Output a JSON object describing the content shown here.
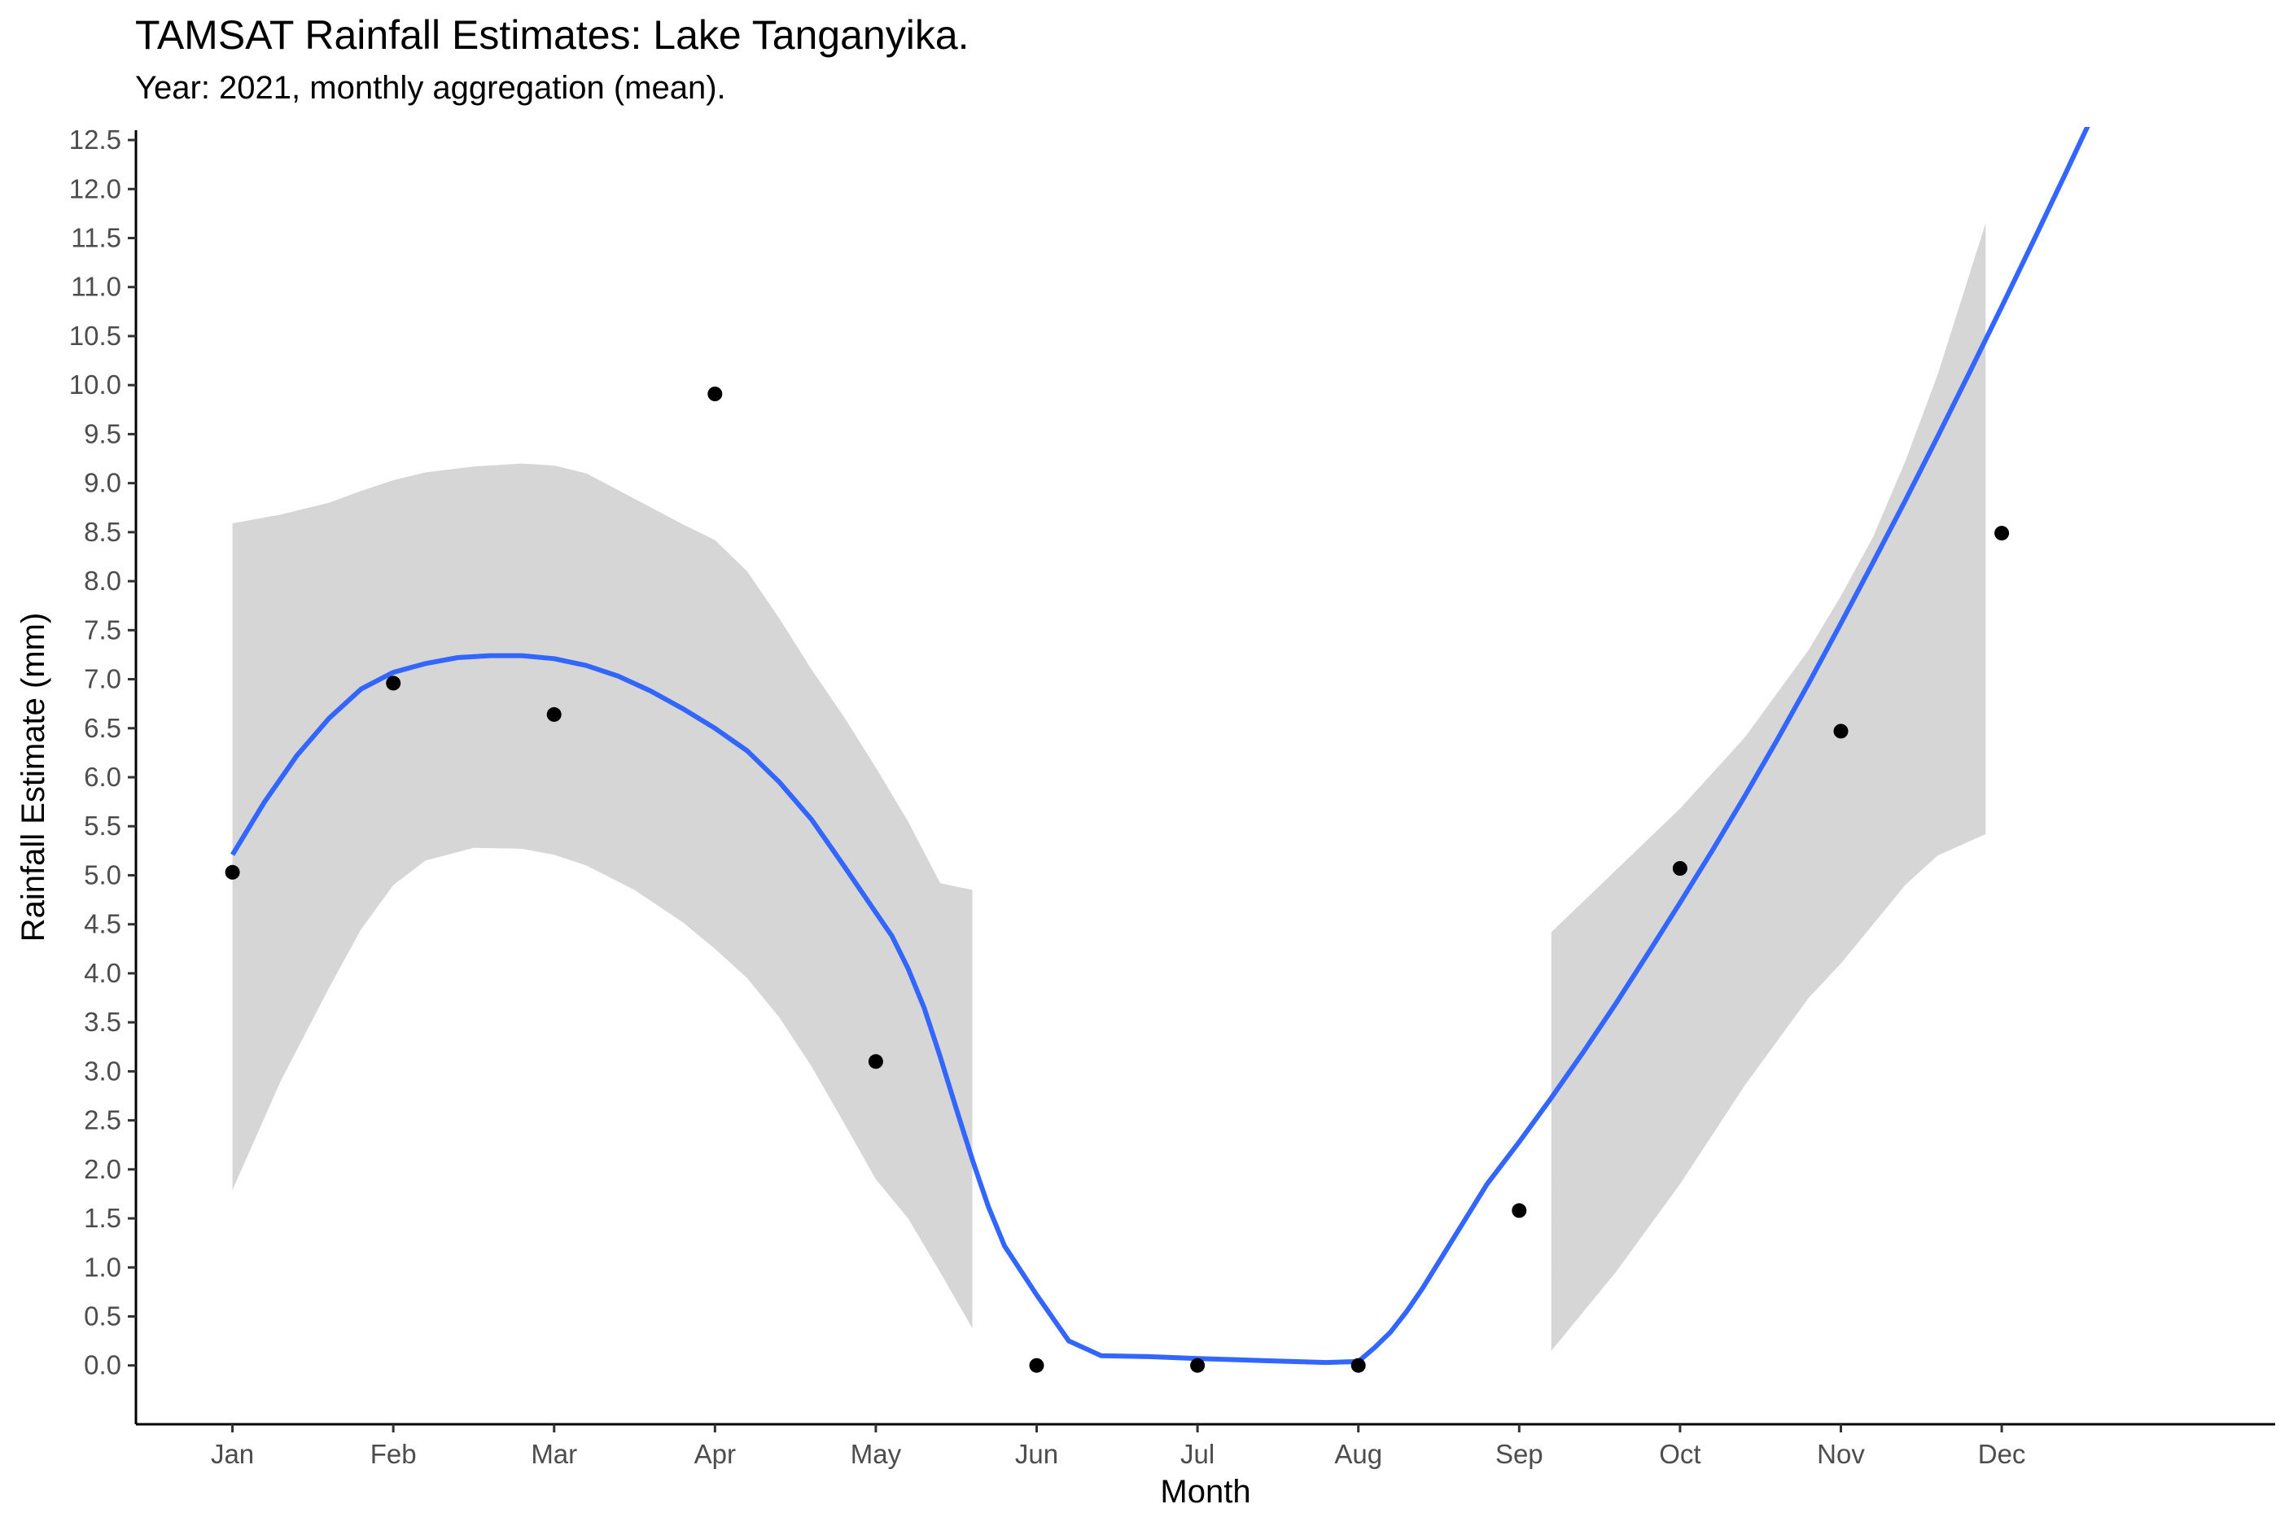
{
  "chart_data": {
    "type": "scatter",
    "title": "TAMSAT Rainfall Estimates: Lake Tanganyika.",
    "subtitle": "Year: 2021, monthly aggregation (mean).",
    "xlabel": "Month",
    "ylabel": "Rainfall Estimate (mm)",
    "categories": [
      "Jan",
      "Feb",
      "Mar",
      "Apr",
      "May",
      "Jun",
      "Jul",
      "Aug",
      "Sep",
      "Oct",
      "Nov",
      "Dec"
    ],
    "yticks": [
      "0.0",
      "0.5",
      "1.0",
      "1.5",
      "2.0",
      "2.5",
      "3.0",
      "3.5",
      "4.0",
      "4.5",
      "5.0",
      "5.5",
      "6.0",
      "6.5",
      "7.0",
      "7.5",
      "8.0",
      "8.5",
      "9.0",
      "9.5",
      "10.0",
      "10.5",
      "11.0",
      "11.5",
      "12.0",
      "12.5"
    ],
    "ylim": [
      -0.6,
      12.6
    ],
    "xlim": [
      0.4,
      13.7
    ],
    "grid": false,
    "colors": {
      "points": "#000000",
      "smooth_line": "#3366ff",
      "ci_band": "#d6d6d6",
      "axis": "#000000",
      "tick_text": "#4d4d4d"
    },
    "points": [
      {
        "x": 1,
        "y": 5.03
      },
      {
        "x": 2,
        "y": 6.96
      },
      {
        "x": 3,
        "y": 6.64
      },
      {
        "x": 4,
        "y": 9.91
      },
      {
        "x": 5,
        "y": 3.1
      },
      {
        "x": 6,
        "y": 0.0
      },
      {
        "x": 7,
        "y": 0.0
      },
      {
        "x": 8,
        "y": 0.0
      },
      {
        "x": 9,
        "y": 1.58
      },
      {
        "x": 10,
        "y": 5.07
      },
      {
        "x": 11,
        "y": 6.47
      },
      {
        "x": 12,
        "y": 8.49
      }
    ],
    "smooth_line": [
      {
        "x": 1.0,
        "y": 5.21
      },
      {
        "x": 1.2,
        "y": 5.75
      },
      {
        "x": 1.4,
        "y": 6.22
      },
      {
        "x": 1.6,
        "y": 6.6
      },
      {
        "x": 1.8,
        "y": 6.9
      },
      {
        "x": 2.0,
        "y": 7.07
      },
      {
        "x": 2.2,
        "y": 7.16
      },
      {
        "x": 2.4,
        "y": 7.22
      },
      {
        "x": 2.6,
        "y": 7.24
      },
      {
        "x": 2.8,
        "y": 7.24
      },
      {
        "x": 3.0,
        "y": 7.21
      },
      {
        "x": 3.2,
        "y": 7.14
      },
      {
        "x": 3.4,
        "y": 7.03
      },
      {
        "x": 3.6,
        "y": 6.88
      },
      {
        "x": 3.8,
        "y": 6.7
      },
      {
        "x": 4.0,
        "y": 6.5
      },
      {
        "x": 4.2,
        "y": 6.27
      },
      {
        "x": 4.4,
        "y": 5.95
      },
      {
        "x": 4.6,
        "y": 5.57
      },
      {
        "x": 4.8,
        "y": 5.1
      },
      {
        "x": 5.0,
        "y": 4.62
      },
      {
        "x": 5.1,
        "y": 4.38
      },
      {
        "x": 5.2,
        "y": 4.05
      },
      {
        "x": 5.3,
        "y": 3.65
      },
      {
        "x": 5.4,
        "y": 3.15
      },
      {
        "x": 5.5,
        "y": 2.62
      },
      {
        "x": 5.6,
        "y": 2.1
      },
      {
        "x": 5.7,
        "y": 1.62
      },
      {
        "x": 5.8,
        "y": 1.22
      },
      {
        "x": 6.0,
        "y": 0.72
      },
      {
        "x": 6.2,
        "y": 0.25
      },
      {
        "x": 6.4,
        "y": 0.1
      },
      {
        "x": 6.7,
        "y": 0.09
      },
      {
        "x": 7.0,
        "y": 0.07
      },
      {
        "x": 7.4,
        "y": 0.05
      },
      {
        "x": 7.8,
        "y": 0.03
      },
      {
        "x": 8.0,
        "y": 0.04
      },
      {
        "x": 8.1,
        "y": 0.18
      },
      {
        "x": 8.2,
        "y": 0.34
      },
      {
        "x": 8.3,
        "y": 0.55
      },
      {
        "x": 8.4,
        "y": 0.79
      },
      {
        "x": 8.6,
        "y": 1.32
      },
      {
        "x": 8.8,
        "y": 1.85
      },
      {
        "x": 9.0,
        "y": 2.28
      },
      {
        "x": 9.2,
        "y": 2.73
      },
      {
        "x": 9.4,
        "y": 3.2
      },
      {
        "x": 9.6,
        "y": 3.69
      },
      {
        "x": 9.8,
        "y": 4.2
      },
      {
        "x": 10.0,
        "y": 4.72
      },
      {
        "x": 10.2,
        "y": 5.25
      },
      {
        "x": 10.4,
        "y": 5.8
      },
      {
        "x": 10.6,
        "y": 6.37
      },
      {
        "x": 10.8,
        "y": 6.96
      },
      {
        "x": 11.0,
        "y": 7.57
      },
      {
        "x": 11.2,
        "y": 8.19
      },
      {
        "x": 11.4,
        "y": 8.82
      },
      {
        "x": 11.6,
        "y": 9.47
      },
      {
        "x": 11.8,
        "y": 10.13
      },
      {
        "x": 12.0,
        "y": 10.8
      },
      {
        "x": 12.2,
        "y": 11.48
      },
      {
        "x": 12.4,
        "y": 12.17
      },
      {
        "x": 12.6,
        "y": 12.87
      },
      {
        "x": 12.8,
        "y": 13.58
      }
    ],
    "ci_band": [
      {
        "x": [
          1.0,
          1.3,
          1.6,
          1.8,
          2.0,
          2.2,
          2.5,
          2.8,
          3.0,
          3.2,
          3.5,
          3.8,
          4.0,
          4.2,
          4.4,
          4.6,
          4.8,
          5.0,
          5.2,
          5.4,
          5.6
        ],
        "upper": [
          8.59,
          8.68,
          8.8,
          8.92,
          9.03,
          9.11,
          9.17,
          9.2,
          9.18,
          9.1,
          8.84,
          8.58,
          8.42,
          8.1,
          7.62,
          7.1,
          6.62,
          6.1,
          5.55,
          4.92,
          4.85
        ],
        "lower": [
          1.79,
          2.9,
          3.85,
          4.45,
          4.9,
          5.15,
          5.28,
          5.27,
          5.21,
          5.1,
          4.85,
          4.52,
          4.25,
          3.95,
          3.55,
          3.05,
          2.48,
          1.9,
          1.5,
          0.95,
          0.38
        ]
      },
      {
        "x": [
          9.2,
          9.6,
          10.0,
          10.4,
          10.8,
          11.0,
          11.2,
          11.4,
          11.6,
          11.9
        ],
        "upper": [
          4.42,
          5.05,
          5.68,
          6.4,
          7.3,
          7.85,
          8.45,
          9.22,
          10.1,
          11.65
        ],
        "lower": [
          0.15,
          0.95,
          1.85,
          2.85,
          3.75,
          4.1,
          4.5,
          4.9,
          5.2,
          5.42
        ]
      }
    ]
  }
}
